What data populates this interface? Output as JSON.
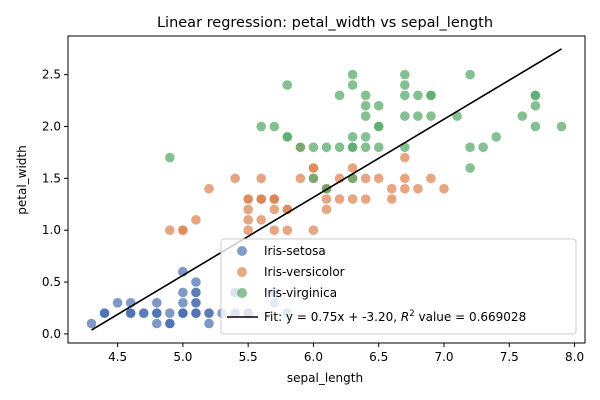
{
  "chart_data": {
    "type": "scatter",
    "title": "Linear regression: petal_width vs sepal_length",
    "xlabel": "sepal_length",
    "ylabel": "petal_width",
    "xlim": [
      4.12,
      8.08
    ],
    "ylim": [
      -0.0875,
      2.8725
    ],
    "x_ticks": [
      "4.5",
      "5.0",
      "5.5",
      "6.0",
      "6.5",
      "7.0",
      "7.5",
      "8.0"
    ],
    "y_ticks": [
      "0.0",
      "0.5",
      "1.0",
      "1.5",
      "2.0",
      "2.5"
    ],
    "grid": false,
    "legend_position": "bottom-right",
    "series": [
      {
        "name": "Iris-setosa",
        "color": "#4c72b0",
        "points": [
          [
            5.1,
            0.2
          ],
          [
            4.9,
            0.2
          ],
          [
            4.7,
            0.2
          ],
          [
            4.6,
            0.2
          ],
          [
            5.0,
            0.2
          ],
          [
            5.4,
            0.4
          ],
          [
            4.6,
            0.3
          ],
          [
            5.0,
            0.2
          ],
          [
            4.4,
            0.2
          ],
          [
            4.9,
            0.1
          ],
          [
            5.4,
            0.2
          ],
          [
            4.8,
            0.2
          ],
          [
            4.8,
            0.1
          ],
          [
            4.3,
            0.1
          ],
          [
            5.8,
            0.2
          ],
          [
            5.7,
            0.4
          ],
          [
            5.4,
            0.4
          ],
          [
            5.1,
            0.3
          ],
          [
            5.7,
            0.3
          ],
          [
            5.1,
            0.3
          ],
          [
            5.4,
            0.2
          ],
          [
            5.1,
            0.4
          ],
          [
            4.6,
            0.2
          ],
          [
            5.1,
            0.5
          ],
          [
            4.8,
            0.2
          ],
          [
            5.0,
            0.2
          ],
          [
            5.0,
            0.4
          ],
          [
            5.2,
            0.2
          ],
          [
            5.2,
            0.2
          ],
          [
            4.7,
            0.2
          ],
          [
            4.8,
            0.2
          ],
          [
            5.4,
            0.4
          ],
          [
            5.2,
            0.1
          ],
          [
            5.5,
            0.2
          ],
          [
            4.9,
            0.1
          ],
          [
            5.0,
            0.2
          ],
          [
            5.5,
            0.2
          ],
          [
            4.9,
            0.1
          ],
          [
            4.4,
            0.2
          ],
          [
            5.1,
            0.2
          ],
          [
            5.0,
            0.3
          ],
          [
            4.5,
            0.3
          ],
          [
            4.4,
            0.2
          ],
          [
            5.0,
            0.6
          ],
          [
            5.1,
            0.4
          ],
          [
            4.8,
            0.3
          ],
          [
            5.1,
            0.2
          ],
          [
            4.6,
            0.2
          ],
          [
            5.3,
            0.2
          ],
          [
            5.0,
            0.2
          ]
        ]
      },
      {
        "name": "Iris-versicolor",
        "color": "#dd8452",
        "points": [
          [
            7.0,
            1.4
          ],
          [
            6.4,
            1.5
          ],
          [
            6.9,
            1.5
          ],
          [
            5.5,
            1.3
          ],
          [
            6.5,
            1.5
          ],
          [
            5.7,
            1.3
          ],
          [
            6.3,
            1.6
          ],
          [
            4.9,
            1.0
          ],
          [
            6.6,
            1.3
          ],
          [
            5.2,
            1.4
          ],
          [
            5.0,
            1.0
          ],
          [
            5.9,
            1.5
          ],
          [
            6.0,
            1.0
          ],
          [
            6.1,
            1.4
          ],
          [
            5.6,
            1.3
          ],
          [
            6.7,
            1.4
          ],
          [
            5.6,
            1.5
          ],
          [
            5.8,
            1.0
          ],
          [
            6.2,
            1.5
          ],
          [
            5.6,
            1.1
          ],
          [
            5.9,
            1.8
          ],
          [
            6.1,
            1.3
          ],
          [
            6.3,
            1.5
          ],
          [
            6.1,
            1.2
          ],
          [
            6.4,
            1.3
          ],
          [
            6.6,
            1.4
          ],
          [
            6.8,
            1.4
          ],
          [
            6.7,
            1.7
          ],
          [
            6.0,
            1.5
          ],
          [
            5.7,
            1.0
          ],
          [
            5.5,
            1.1
          ],
          [
            5.5,
            1.0
          ],
          [
            5.8,
            1.2
          ],
          [
            6.0,
            1.6
          ],
          [
            5.4,
            1.5
          ],
          [
            6.0,
            1.6
          ],
          [
            6.7,
            1.5
          ],
          [
            6.3,
            1.3
          ],
          [
            5.6,
            1.3
          ],
          [
            5.5,
            1.3
          ],
          [
            5.5,
            1.2
          ],
          [
            6.1,
            1.4
          ],
          [
            5.8,
            1.2
          ],
          [
            5.0,
            1.0
          ],
          [
            5.6,
            1.3
          ],
          [
            5.7,
            1.2
          ],
          [
            5.7,
            1.3
          ],
          [
            6.2,
            1.3
          ],
          [
            5.1,
            1.1
          ],
          [
            5.7,
            1.3
          ]
        ]
      },
      {
        "name": "Iris-virginica",
        "color": "#55a868",
        "points": [
          [
            6.3,
            2.5
          ],
          [
            5.8,
            1.9
          ],
          [
            7.1,
            2.1
          ],
          [
            6.3,
            1.8
          ],
          [
            6.5,
            2.2
          ],
          [
            7.6,
            2.1
          ],
          [
            4.9,
            1.7
          ],
          [
            7.3,
            1.8
          ],
          [
            6.7,
            1.8
          ],
          [
            7.2,
            2.5
          ],
          [
            6.5,
            2.0
          ],
          [
            6.4,
            1.9
          ],
          [
            6.8,
            2.1
          ],
          [
            5.7,
            2.0
          ],
          [
            5.8,
            2.4
          ],
          [
            6.4,
            2.3
          ],
          [
            6.5,
            1.8
          ],
          [
            7.7,
            2.2
          ],
          [
            7.7,
            2.3
          ],
          [
            6.0,
            1.5
          ],
          [
            6.9,
            2.3
          ],
          [
            5.6,
            2.0
          ],
          [
            7.7,
            2.0
          ],
          [
            6.3,
            1.8
          ],
          [
            6.7,
            2.1
          ],
          [
            7.2,
            1.8
          ],
          [
            6.2,
            1.8
          ],
          [
            6.1,
            1.8
          ],
          [
            6.4,
            2.1
          ],
          [
            7.2,
            1.6
          ],
          [
            7.4,
            1.9
          ],
          [
            7.9,
            2.0
          ],
          [
            6.4,
            2.2
          ],
          [
            6.3,
            1.5
          ],
          [
            6.1,
            1.4
          ],
          [
            7.7,
            2.3
          ],
          [
            6.3,
            2.4
          ],
          [
            6.4,
            1.8
          ],
          [
            6.0,
            1.8
          ],
          [
            6.9,
            2.1
          ],
          [
            6.7,
            2.4
          ],
          [
            6.9,
            2.3
          ],
          [
            5.8,
            1.9
          ],
          [
            6.8,
            2.3
          ],
          [
            6.7,
            2.5
          ],
          [
            6.7,
            2.3
          ],
          [
            6.3,
            1.9
          ],
          [
            6.5,
            2.0
          ],
          [
            6.2,
            2.3
          ],
          [
            5.9,
            1.8
          ]
        ]
      }
    ],
    "fit_line": {
      "label": "Fit: y = 0.75x + -3.20, $R^2$ value = 0.669028",
      "label_prefix": "Fit: y = 0.75x + -3.20, ",
      "label_r": "R",
      "label_sup": "2",
      "label_suffix": " value = 0.669028",
      "slope": 0.7529,
      "intercept": -3.2002,
      "x_range": [
        4.3,
        7.9
      ],
      "color": "#000000"
    }
  }
}
